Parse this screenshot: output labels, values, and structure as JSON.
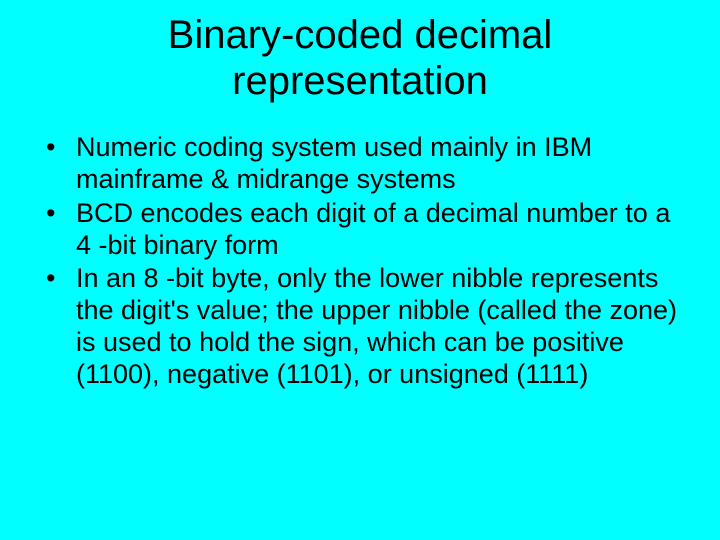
{
  "slide": {
    "background_color": "#00ffff",
    "text_color": "#000000",
    "title": "Binary-coded decimal representation",
    "title_fontsize": 40,
    "body_fontsize": 27,
    "bullets": [
      "Numeric coding system used mainly in IBM mainframe & midrange systems",
      "BCD encodes each digit of a decimal number to a 4 -bit binary form",
      "In an 8 -bit byte, only the lower nibble represents the digit's value; the upper nibble (called the zone) is used to hold the sign, which can be positive (1100), negative (1101), or unsigned (1111)"
    ]
  }
}
